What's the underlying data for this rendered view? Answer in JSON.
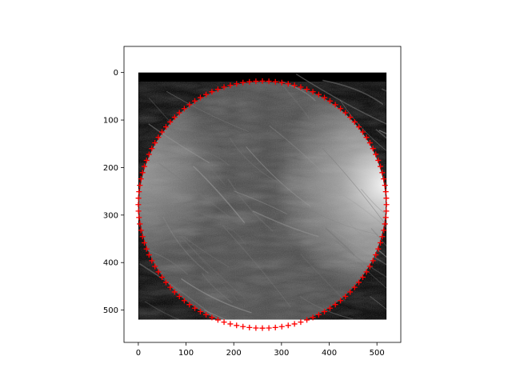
{
  "chart_data": {
    "type": "scatter",
    "title": "",
    "xlabel": "",
    "ylabel": "",
    "xlim": [
      -30,
      550
    ],
    "ylim": [
      568,
      -55
    ],
    "y_inverted": true,
    "grid": false,
    "x_ticks": [
      0,
      100,
      200,
      300,
      400,
      500
    ],
    "x_tick_labels": [
      "0",
      "100",
      "200",
      "300",
      "400",
      "500"
    ],
    "y_ticks": [
      0,
      100,
      200,
      300,
      400,
      500
    ],
    "y_tick_labels": [
      "0",
      "100",
      "200",
      "300",
      "400",
      "500"
    ],
    "image": {
      "extent": [
        0,
        520,
        0,
        520
      ],
      "content": "grayscale mammography tissue texture",
      "background_color": "#000000"
    },
    "contour": {
      "marker": "+",
      "color": "#ff0000",
      "center": [
        260,
        278
      ],
      "radius_x": 260,
      "radius_y": 260,
      "point_count": 120
    }
  }
}
